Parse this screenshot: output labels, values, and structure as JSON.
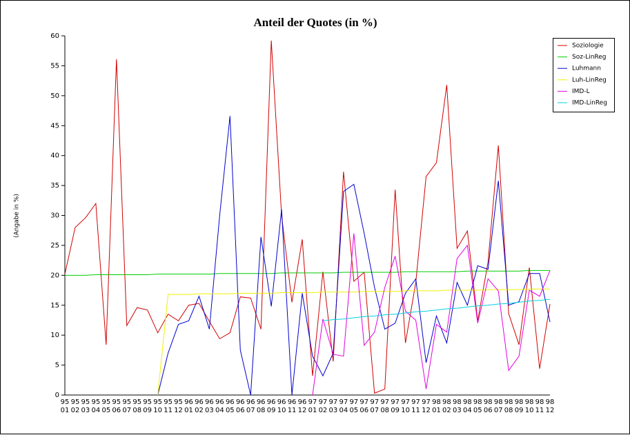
{
  "chart_data": {
    "type": "line",
    "title": "Anteil der Quotes (in %)",
    "y_label": "(Angabe in %)",
    "categories": [
      [
        "95",
        "01"
      ],
      [
        "95",
        "02"
      ],
      [
        "95",
        "03"
      ],
      [
        "95",
        "04"
      ],
      [
        "95",
        "05"
      ],
      [
        "95",
        "06"
      ],
      [
        "95",
        "07"
      ],
      [
        "95",
        "08"
      ],
      [
        "95",
        "09"
      ],
      [
        "95",
        "10"
      ],
      [
        "95",
        "11"
      ],
      [
        "95",
        "12"
      ],
      [
        "96",
        "01"
      ],
      [
        "96",
        "02"
      ],
      [
        "96",
        "03"
      ],
      [
        "96",
        "04"
      ],
      [
        "96",
        "05"
      ],
      [
        "96",
        "06"
      ],
      [
        "96",
        "07"
      ],
      [
        "96",
        "08"
      ],
      [
        "96",
        "09"
      ],
      [
        "96",
        "10"
      ],
      [
        "96",
        "11"
      ],
      [
        "96",
        "12"
      ],
      [
        "97",
        "01"
      ],
      [
        "97",
        "02"
      ],
      [
        "97",
        "03"
      ],
      [
        "97",
        "04"
      ],
      [
        "97",
        "05"
      ],
      [
        "97",
        "06"
      ],
      [
        "97",
        "07"
      ],
      [
        "97",
        "08"
      ],
      [
        "97",
        "09"
      ],
      [
        "97",
        "10"
      ],
      [
        "97",
        "11"
      ],
      [
        "97",
        "12"
      ],
      [
        "98",
        "01"
      ],
      [
        "98",
        "02"
      ],
      [
        "98",
        "03"
      ],
      [
        "98",
        "04"
      ],
      [
        "98",
        "05"
      ],
      [
        "98",
        "06"
      ],
      [
        "98",
        "07"
      ],
      [
        "98",
        "08"
      ],
      [
        "98",
        "09"
      ],
      [
        "98",
        "10"
      ],
      [
        "98",
        "11"
      ],
      [
        "98",
        "12"
      ]
    ],
    "series": [
      {
        "name": "Soziologie",
        "color": "#d00000",
        "values": [
          20.2,
          28,
          29.6,
          32,
          8.4,
          56.1,
          11.6,
          14.6,
          14.2,
          10.4,
          13.5,
          12.4,
          15,
          15.3,
          12.3,
          9.4,
          10.4,
          16.4,
          16.2,
          11,
          59.2,
          30,
          15.5,
          26,
          3.2,
          20.6,
          5.6,
          37.3,
          19,
          20.5,
          0.3,
          1,
          34.3,
          8.7,
          18.8,
          36.5,
          38.8,
          51.8,
          24.5,
          27.4,
          12.4,
          22.2,
          41.7,
          13.6,
          8.4,
          21.3,
          4.4,
          15.2
        ]
      },
      {
        "name": "Soz-LinReg",
        "color": "#00cc00",
        "values": [
          20.0,
          20.0,
          20.0,
          20.1,
          20.1,
          20.1,
          20.1,
          20.1,
          20.1,
          20.2,
          20.2,
          20.2,
          20.2,
          20.2,
          20.2,
          20.3,
          20.3,
          20.3,
          20.3,
          20.3,
          20.3,
          20.4,
          20.4,
          20.4,
          20.4,
          20.4,
          20.4,
          20.5,
          20.5,
          20.5,
          20.5,
          20.5,
          20.5,
          20.6,
          20.6,
          20.6,
          20.6,
          20.6,
          20.6,
          20.7,
          20.7,
          20.7,
          20.7,
          20.7,
          20.7,
          20.8,
          20.8,
          20.8
        ]
      },
      {
        "name": "Luhmann",
        "color": "#0000cc",
        "values": [
          null,
          null,
          null,
          null,
          null,
          null,
          null,
          null,
          null,
          0,
          7,
          11.8,
          12.4,
          16.5,
          11,
          30,
          46.6,
          7.5,
          0,
          26.4,
          14.8,
          31,
          0,
          17,
          6.5,
          3.2,
          7,
          34,
          35.2,
          27,
          18,
          11,
          12,
          17,
          19.4,
          5.4,
          13.2,
          8.7,
          18.8,
          15,
          21.6,
          21,
          35.8,
          15,
          15.6,
          20.3,
          20.3,
          12.2
        ]
      },
      {
        "name": "Luh-LinReg",
        "color": "#f0f000",
        "values": [
          null,
          null,
          null,
          null,
          null,
          null,
          null,
          null,
          null,
          0,
          16.8,
          16.8,
          16.8,
          16.9,
          16.9,
          16.9,
          16.9,
          17.0,
          17.0,
          17.0,
          17.0,
          17.1,
          17.1,
          17.1,
          17.1,
          17.2,
          17.2,
          17.2,
          17.2,
          17.3,
          17.3,
          17.3,
          17.3,
          17.4,
          17.4,
          17.4,
          17.4,
          17.5,
          17.5,
          17.5,
          17.5,
          17.6,
          17.6,
          17.6,
          17.6,
          17.7,
          17.7,
          17.7
        ]
      },
      {
        "name": "IMD-L",
        "color": "#e000e0",
        "values": [
          null,
          null,
          null,
          null,
          null,
          null,
          null,
          null,
          null,
          null,
          null,
          null,
          null,
          null,
          null,
          null,
          null,
          null,
          null,
          null,
          null,
          null,
          null,
          null,
          0,
          12.7,
          6.8,
          6.5,
          27,
          8.3,
          10.5,
          18,
          23.2,
          14,
          12.5,
          1,
          11.8,
          10.5,
          22.8,
          25,
          12,
          19.4,
          17.4,
          4.1,
          6.5,
          17.5,
          16.5,
          20.8
        ]
      },
      {
        "name": "IMD-LinReg",
        "color": "#00d0e0",
        "values": [
          null,
          null,
          null,
          null,
          null,
          null,
          null,
          null,
          null,
          null,
          null,
          null,
          null,
          null,
          null,
          null,
          null,
          null,
          null,
          null,
          null,
          null,
          null,
          null,
          null,
          12.4,
          12.6,
          12.7,
          12.9,
          13.1,
          13.2,
          13.4,
          13.5,
          13.7,
          13.9,
          14.0,
          14.2,
          14.4,
          14.5,
          14.7,
          14.9,
          15.0,
          15.2,
          15.3,
          15.5,
          15.7,
          15.8,
          16.0
        ]
      }
    ],
    "ylim": [
      0,
      60
    ],
    "yticks": [
      0,
      5,
      10,
      15,
      20,
      25,
      30,
      35,
      40,
      45,
      50,
      55,
      60
    ],
    "grid": false,
    "legend": "top-right"
  }
}
